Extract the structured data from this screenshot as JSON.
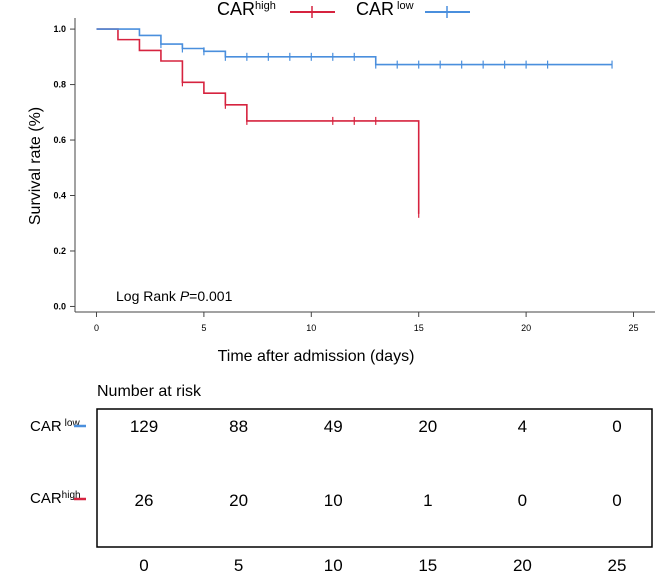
{
  "chart_data": {
    "type": "line",
    "subtype": "kaplan-meier",
    "title": "",
    "xlabel": "Time after admission (days)",
    "ylabel": "Survival rate (%)",
    "xlim": [
      -1,
      26
    ],
    "ylim": [
      -0.02,
      1.04
    ],
    "x_ticks": [
      0,
      5,
      10,
      15,
      20,
      25
    ],
    "x_tick_labels": [
      "0",
      "5",
      "10",
      "15",
      "20",
      "25"
    ],
    "y_ticks": [
      0.0,
      0.2,
      0.4,
      0.6,
      0.8,
      1.0
    ],
    "y_tick_labels": [
      "0.0",
      "0.2",
      "0.4",
      "0.6",
      "0.8",
      "1.0"
    ],
    "legend_position": "top",
    "annotation": {
      "prefix": "Log Rank ",
      "italic": "P",
      "suffix": "=0.001"
    },
    "series": [
      {
        "name": "CAR high",
        "label_main": "CAR",
        "label_sup": "high",
        "color": "#d6233f",
        "steps": [
          {
            "x": 0,
            "y": 1.0
          },
          {
            "x": 1,
            "y": 0.962
          },
          {
            "x": 2,
            "y": 0.923
          },
          {
            "x": 3,
            "y": 0.885
          },
          {
            "x": 4,
            "y": 0.808
          },
          {
            "x": 5,
            "y": 0.769
          },
          {
            "x": 6,
            "y": 0.727
          },
          {
            "x": 7,
            "y": 0.669
          },
          {
            "x": 15,
            "y": 0.334
          }
        ],
        "end_x": 15,
        "censor_x": [
          4,
          6,
          7,
          11,
          12,
          13,
          15
        ]
      },
      {
        "name": "CAR low",
        "label_main": "CAR",
        "label_sup": "low",
        "color": "#4a8fdd",
        "steps": [
          {
            "x": 0,
            "y": 1.0
          },
          {
            "x": 2,
            "y": 0.977
          },
          {
            "x": 3,
            "y": 0.946
          },
          {
            "x": 4,
            "y": 0.93
          },
          {
            "x": 5,
            "y": 0.92
          },
          {
            "x": 6,
            "y": 0.9
          },
          {
            "x": 13,
            "y": 0.872
          }
        ],
        "end_x": 24,
        "censor_x": [
          3,
          4,
          5,
          6,
          7,
          8,
          9,
          10,
          11,
          12,
          13,
          14,
          15,
          16,
          17,
          18,
          19,
          20,
          21,
          24
        ]
      }
    ],
    "risk_table": {
      "title": "Number at risk",
      "time_points": [
        0,
        5,
        10,
        15,
        20,
        25
      ],
      "time_labels": [
        "0",
        "5",
        "10",
        "15",
        "20",
        "25"
      ],
      "rows": [
        {
          "label_main": "CAR",
          "label_sup": "low",
          "color": "#4a8fdd",
          "values": [
            "129",
            "88",
            "49",
            "20",
            "4",
            "0"
          ]
        },
        {
          "label_main": "CAR",
          "label_sup": "high",
          "color": "#d6233f",
          "values": [
            "26",
            "20",
            "10",
            "1",
            "0",
            "0"
          ]
        }
      ]
    }
  }
}
